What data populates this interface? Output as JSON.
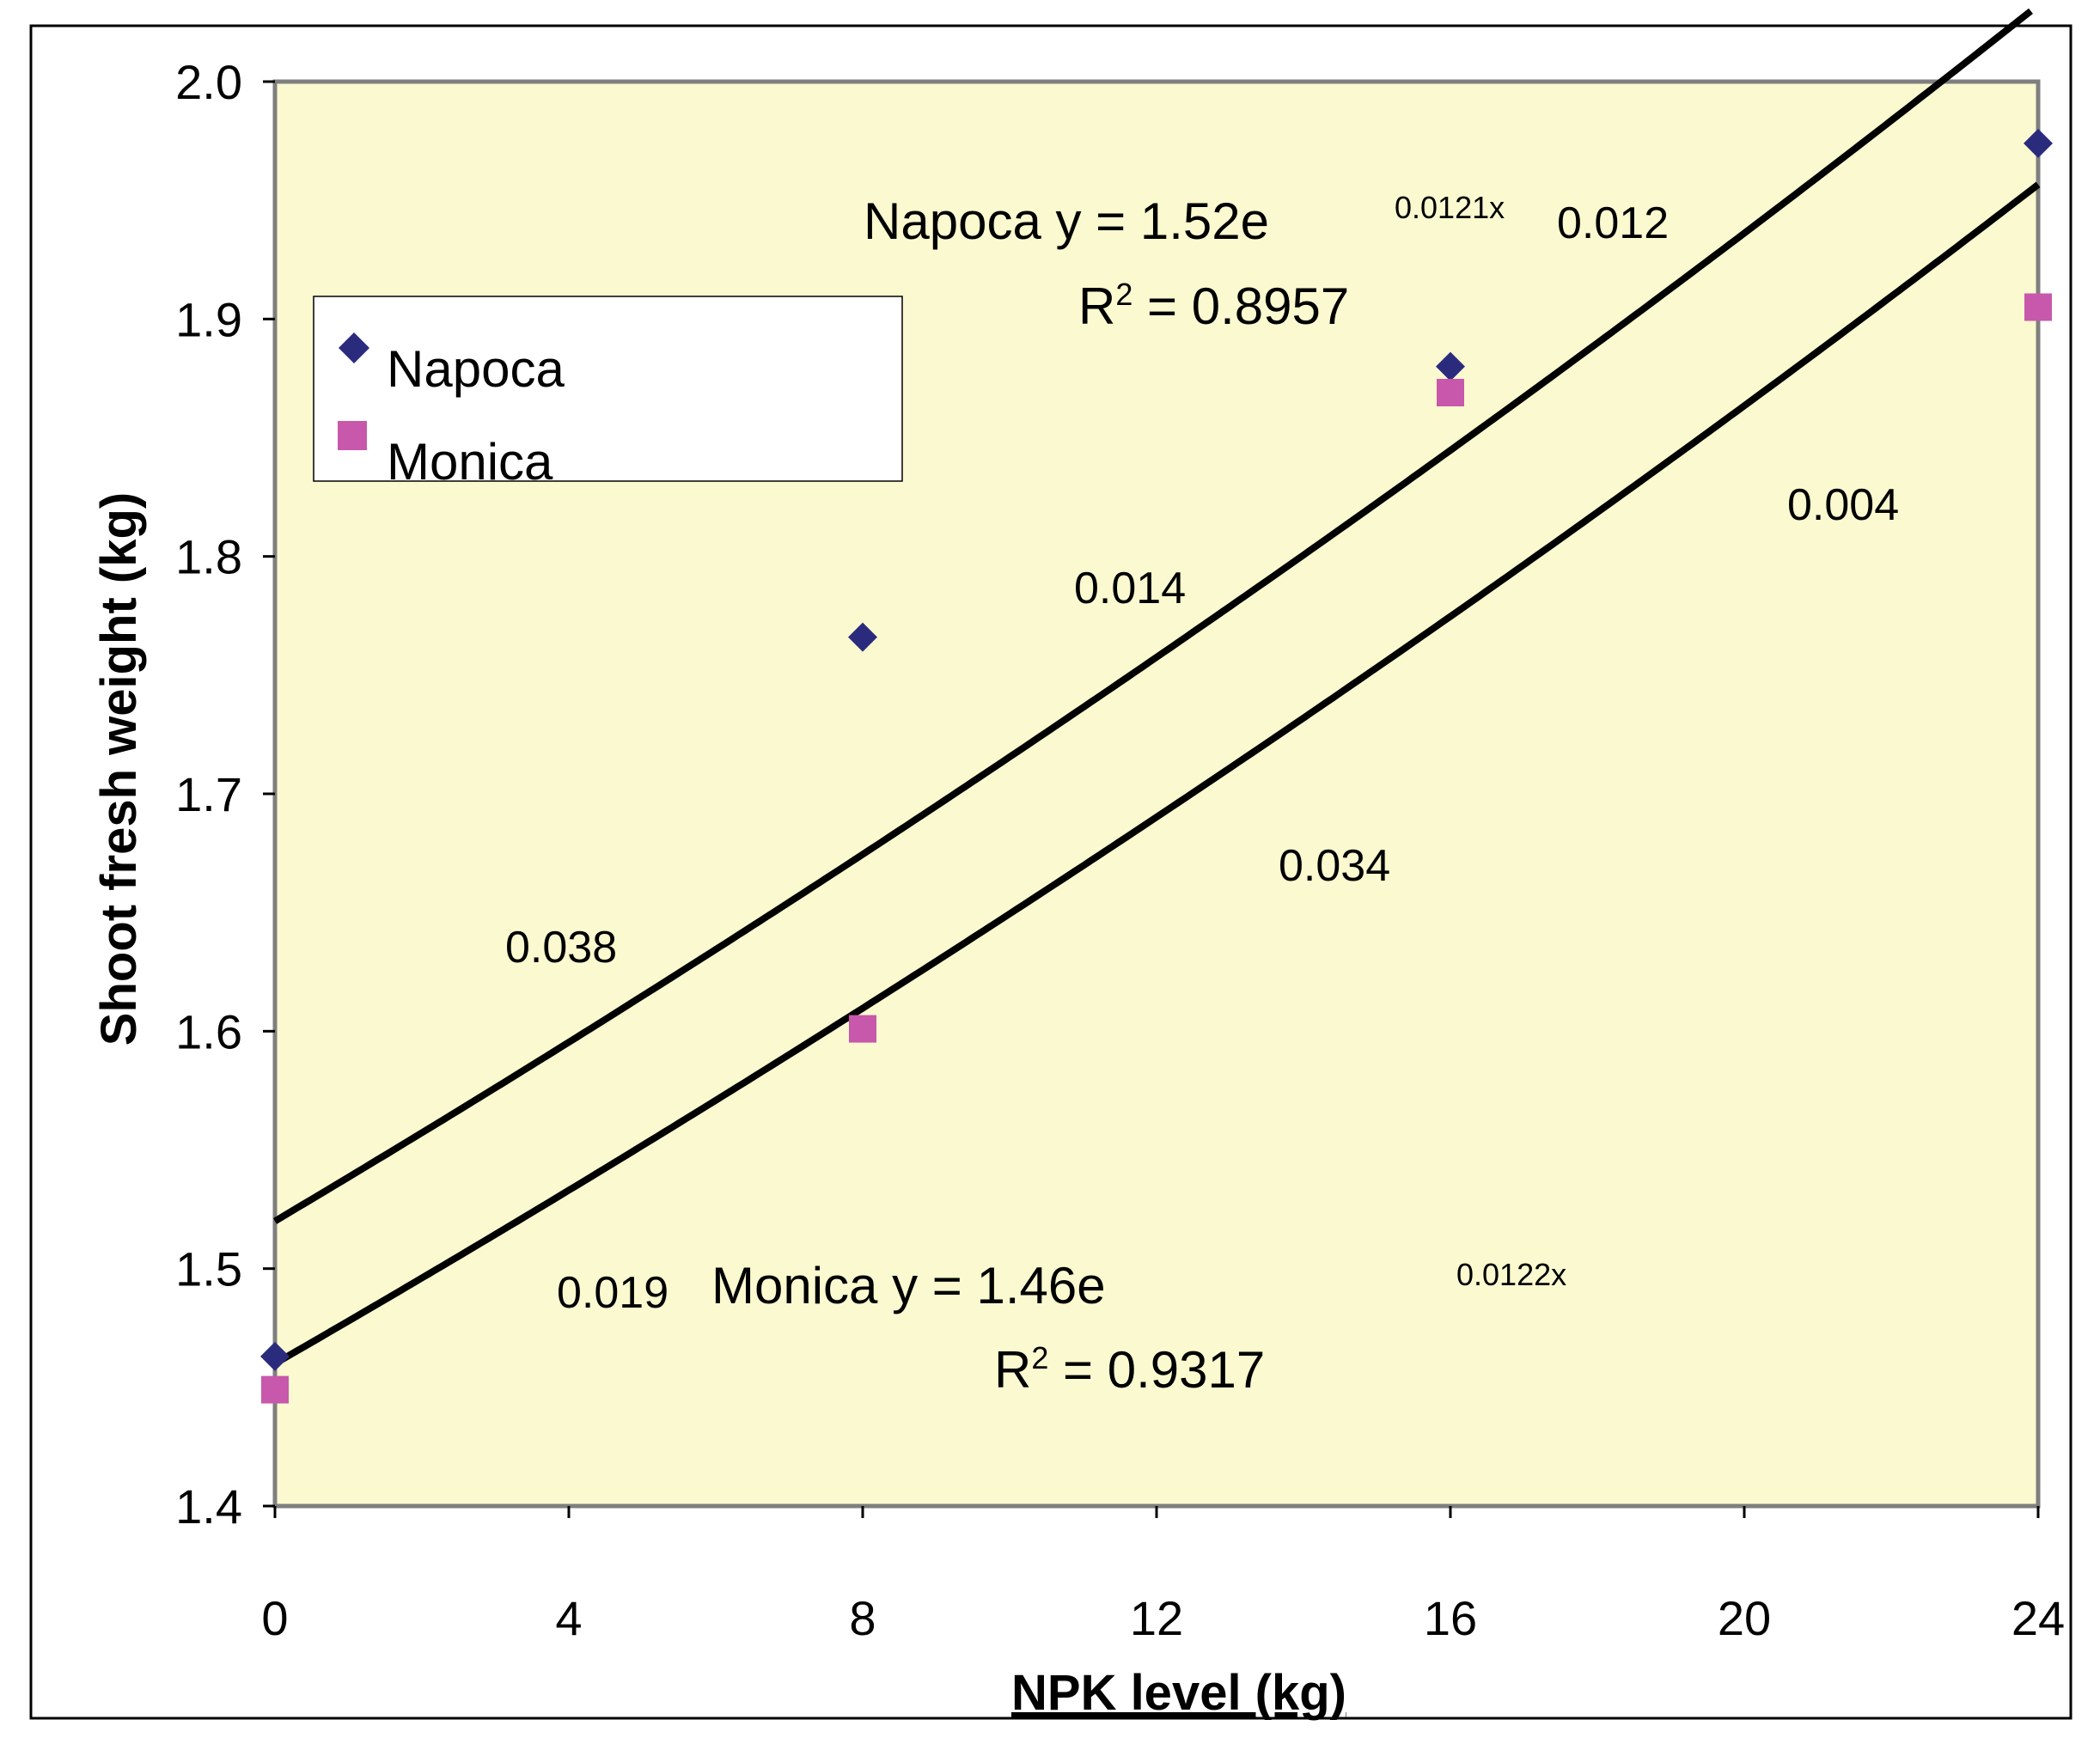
{
  "colors": {
    "plot_background": "#fbf9cf",
    "napoca_marker": "#2b2b7e",
    "monica_marker": "#c858ab",
    "trend_line": "#000000"
  },
  "chart_data": {
    "type": "scatter",
    "xlabel": "NPK level (kg)",
    "ylabel": "Shoot fresh weight (kg)",
    "xlim": [
      0,
      24
    ],
    "ylim": [
      1.4,
      2.0
    ],
    "x_ticks": [
      "0",
      "4",
      "8",
      "12",
      "16",
      "20",
      "24"
    ],
    "y_ticks": [
      "1.4",
      "1.5",
      "1.6",
      "1.7",
      "1.8",
      "1.9",
      "2.0"
    ],
    "grid": false,
    "legend_position": "top-left",
    "series": [
      {
        "name": "Napoca",
        "marker": "diamond",
        "x": [
          0,
          8,
          16,
          24
        ],
        "y": [
          1.463,
          1.766,
          1.88,
          1.974
        ],
        "trendline": {
          "type": "exponential",
          "a": 1.52,
          "b": 0.0121,
          "r2": 0.8957
        }
      },
      {
        "name": "Monica",
        "marker": "square",
        "x": [
          0,
          8,
          16,
          24
        ],
        "y": [
          1.449,
          1.601,
          1.869,
          1.905
        ],
        "trendline": {
          "type": "exponential",
          "a": 1.46,
          "b": 0.0122,
          "r2": 0.9317
        }
      }
    ],
    "annotations": {
      "napoca_equation": "Napoca y = 1.52e",
      "napoca_exponent": "0.0121x",
      "napoca_r2_label": "R",
      "napoca_r2_sup": "2",
      "napoca_r2_value": " = 0.8957",
      "monica_equation": "Monica y = 1.46e",
      "monica_exponent": "0.0122x",
      "monica_r2_label": "R",
      "monica_r2_sup": "2",
      "monica_r2_value": " = 0.9317",
      "p_values": [
        "0.012",
        "0.014",
        "0.004",
        "0.034",
        "0.038",
        "0.019"
      ]
    }
  }
}
